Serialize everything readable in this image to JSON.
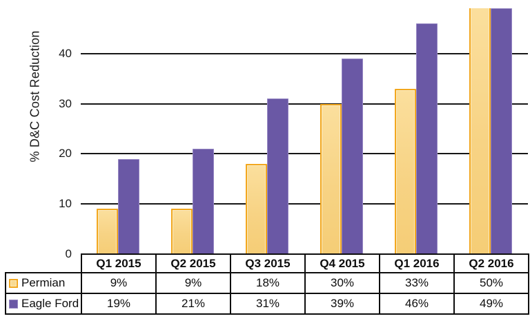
{
  "chart_data": {
    "type": "bar",
    "title": "",
    "ylabel": "% D&C Cost Reduction",
    "xlabel": "",
    "categories": [
      "Q1 2015",
      "Q2 2015",
      "Q3 2015",
      "Q4 2015",
      "Q1 2016",
      "Q2 2016"
    ],
    "series": [
      {
        "name": "Permian",
        "values": [
          9,
          9,
          18,
          30,
          33,
          50
        ],
        "labels": [
          "9%",
          "9%",
          "18%",
          "30%",
          "33%",
          "50%"
        ],
        "fill_color": "#F8D78C",
        "border_color": "#F2A71E"
      },
      {
        "name": "Eagle Ford",
        "values": [
          19,
          21,
          31,
          39,
          46,
          49
        ],
        "labels": [
          "19%",
          "21%",
          "31%",
          "39%",
          "46%",
          "49%"
        ],
        "fill_color": "#6A58A5",
        "border_color": "#9687C3"
      }
    ],
    "y_ticks": [
      0,
      10,
      20,
      30,
      40
    ],
    "ylim": [
      0,
      49
    ],
    "grid": true,
    "gridline_color": "#161616",
    "legend_position": "table-left-column",
    "data_table_shown": true
  }
}
